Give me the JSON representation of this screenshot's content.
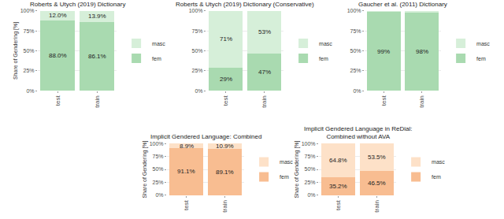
{
  "chart_data": [
    {
      "type": "bar",
      "stacked": true,
      "title": "Roberts & Utych (2019) Dictionary",
      "ylabel": "Share of Gendering [%]",
      "categories": [
        "test",
        "train"
      ],
      "series": [
        {
          "name": "fem",
          "color": "#a9dab0",
          "values": [
            88.0,
            86.1
          ],
          "value_labels": [
            "88.0%",
            "86.1%"
          ]
        },
        {
          "name": "masc",
          "color": "#d6efd9",
          "values": [
            12.0,
            13.9
          ],
          "value_labels": [
            "12.0%",
            "13.9%"
          ]
        }
      ],
      "ylim": [
        0,
        100
      ],
      "yticks": [
        {
          "value": 0,
          "label": "0%"
        },
        {
          "value": 25,
          "label": "25%"
        },
        {
          "value": 50,
          "label": "50%"
        },
        {
          "value": 75,
          "label": "75%"
        },
        {
          "value": 100,
          "label": "100%"
        }
      ],
      "grid": true,
      "legend": "right",
      "data_labels": true
    },
    {
      "type": "bar",
      "stacked": true,
      "title": "Roberts & Utych (2019) Dictionary (Conservative)",
      "categories": [
        "test",
        "train"
      ],
      "series": [
        {
          "name": "fem",
          "color": "#a9dab0",
          "values": [
            29,
            47
          ],
          "value_labels": [
            "29%",
            "47%"
          ]
        },
        {
          "name": "masc",
          "color": "#d6efd9",
          "values": [
            71,
            53
          ],
          "value_labels": [
            "71%",
            "53%"
          ]
        }
      ],
      "ylim": [
        0,
        100
      ],
      "yticks": [
        {
          "value": 0,
          "label": "0%"
        },
        {
          "value": 25,
          "label": "25%"
        },
        {
          "value": 50,
          "label": "50%"
        },
        {
          "value": 75,
          "label": "75%"
        },
        {
          "value": 100,
          "label": "100%"
        }
      ],
      "grid": true,
      "legend": "right",
      "data_labels": true
    },
    {
      "type": "bar",
      "stacked": true,
      "title": "Gaucher et al. (2011) Dictionary",
      "categories": [
        "test",
        "train"
      ],
      "series": [
        {
          "name": "fem",
          "color": "#a9dab0",
          "values": [
            99,
            98
          ],
          "value_labels": [
            "99%",
            "98%"
          ]
        },
        {
          "name": "masc",
          "color": "#d6efd9",
          "values": [
            1,
            2
          ],
          "value_labels": [
            null,
            null
          ]
        }
      ],
      "ylim": [
        0,
        100
      ],
      "yticks": [
        {
          "value": 0,
          "label": "0%"
        },
        {
          "value": 25,
          "label": "25%"
        },
        {
          "value": 50,
          "label": "50%"
        },
        {
          "value": 75,
          "label": "75%"
        },
        {
          "value": 100,
          "label": "100%"
        }
      ],
      "grid": true,
      "legend": "right",
      "data_labels": true
    },
    {
      "type": "bar",
      "stacked": true,
      "title": "Implicit Gendered Language: Combined",
      "ylabel": "Share of Gendering [%]",
      "categories": [
        "test",
        "train"
      ],
      "series": [
        {
          "name": "fem",
          "color": "#f8bd91",
          "values": [
            91.1,
            89.1
          ],
          "value_labels": [
            "91.1%",
            "89.1%"
          ]
        },
        {
          "name": "masc",
          "color": "#fde1c8",
          "values": [
            8.9,
            10.9
          ],
          "value_labels": [
            "8.9%",
            "10.9%"
          ]
        }
      ],
      "ylim": [
        0,
        100
      ],
      "yticks": [
        {
          "value": 0,
          "label": "0%"
        },
        {
          "value": 25,
          "label": "25%"
        },
        {
          "value": 50,
          "label": "50%"
        },
        {
          "value": 75,
          "label": "75%"
        },
        {
          "value": 100,
          "label": "100%"
        }
      ],
      "grid": true,
      "legend": "right",
      "data_labels": true
    },
    {
      "type": "bar",
      "stacked": true,
      "title": "Implicit Gendered Language in ReDial:\nCombined without AVA",
      "ylabel": "Share of Gendering [%]",
      "categories": [
        "test",
        "train"
      ],
      "series": [
        {
          "name": "fem",
          "color": "#f8bd91",
          "values": [
            35.2,
            46.5
          ],
          "value_labels": [
            "35.2%",
            "46.5%"
          ]
        },
        {
          "name": "masc",
          "color": "#fde1c8",
          "values": [
            64.8,
            53.5
          ],
          "value_labels": [
            "64.8%",
            "53.5%"
          ]
        }
      ],
      "ylim": [
        0,
        100
      ],
      "yticks": [
        {
          "value": 0,
          "label": "0%"
        },
        {
          "value": 25,
          "label": "25%"
        },
        {
          "value": 50,
          "label": "50%"
        },
        {
          "value": 75,
          "label": "75%"
        },
        {
          "value": 100,
          "label": "100%"
        }
      ],
      "grid": true,
      "legend": "right",
      "data_labels": true
    }
  ]
}
